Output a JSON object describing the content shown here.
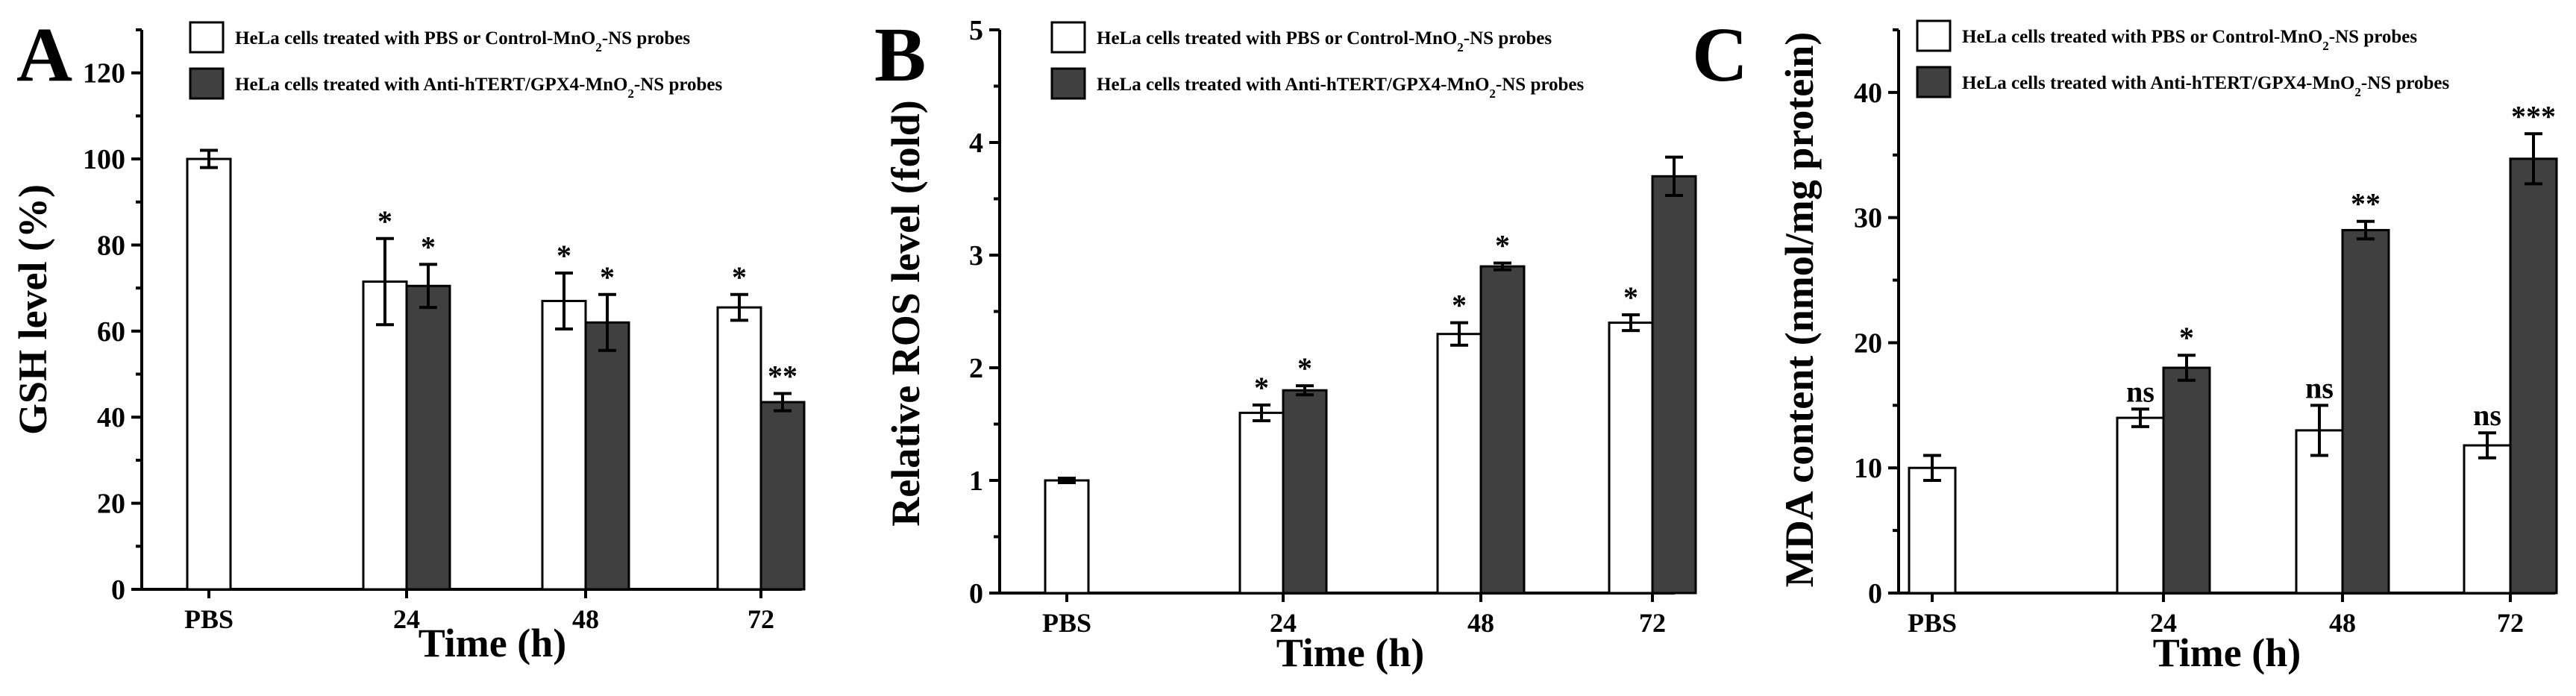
{
  "figure": {
    "panels": [
      {
        "letter": "A",
        "legend": [
          {
            "text": "HeLa cells treated with PBS or Control-MnO",
            "sub": "2",
            "tail": "-NS probes",
            "color": "#ffffff"
          },
          {
            "text": "HeLa cells treated with Anti-hTERT/GPX4-MnO",
            "sub": "2",
            "tail": "-NS probes",
            "color": "#404040"
          }
        ]
      },
      {
        "letter": "B",
        "legend": [
          {
            "text": "HeLa cells treated with PBS or Control-MnO",
            "sub": "2",
            "tail": "-NS probes",
            "color": "#ffffff"
          },
          {
            "text": "HeLa cells treated with Anti-hTERT/GPX4-MnO",
            "sub": "2",
            "tail": "-NS probes",
            "color": "#404040"
          }
        ]
      },
      {
        "letter": "C",
        "legend": [
          {
            "text": "HeLa cells treated with PBS or Control-MnO",
            "sub": "2",
            "tail": "-NS probes",
            "color": "#ffffff"
          },
          {
            "text": "HeLa cells treated with Anti-hTERT/GPX4-MnO",
            "sub": "2",
            "tail": "-NS probes",
            "color": "#404040"
          }
        ]
      }
    ]
  },
  "chart_data": [
    {
      "type": "bar",
      "panel": "A",
      "xlabel": "Time (h)",
      "ylabel": "GSH level (%)",
      "ylim": [
        0,
        130
      ],
      "yticks": [
        0,
        20,
        40,
        60,
        80,
        100,
        120
      ],
      "categories": [
        "PBS",
        "24",
        "48",
        "72"
      ],
      "series": [
        {
          "name": "HeLa cells treated with PBS or Control-MnO2-NS probes",
          "color": "#ffffff",
          "values": [
            100,
            71.5,
            67,
            65.5
          ],
          "errors": [
            2,
            10,
            6.5,
            3
          ],
          "labels": [
            "",
            "*",
            "*",
            "*"
          ]
        },
        {
          "name": "HeLa cells treated with Anti-hTERT/GPX4-MnO2-NS probes",
          "color": "#404040",
          "values": [
            null,
            70.5,
            62,
            43.5
          ],
          "errors": [
            null,
            5,
            6.5,
            2
          ],
          "labels": [
            "",
            "*",
            "*",
            "**"
          ]
        }
      ]
    },
    {
      "type": "bar",
      "panel": "B",
      "xlabel": "Time (h)",
      "ylabel": "Relative ROS level (fold)",
      "ylim": [
        0,
        5
      ],
      "yticks": [
        0,
        1,
        2,
        3,
        4,
        5
      ],
      "categories": [
        "PBS",
        "24",
        "48",
        "72"
      ],
      "series": [
        {
          "name": "HeLa cells treated with PBS or Control-MnO2-NS probes",
          "color": "#ffffff",
          "values": [
            1.0,
            1.6,
            2.3,
            2.4
          ],
          "errors": [
            0.02,
            0.07,
            0.1,
            0.07
          ],
          "labels": [
            "",
            "*",
            "*",
            "*"
          ]
        },
        {
          "name": "HeLa cells treated with Anti-hTERT/GPX4-MnO2-NS probes",
          "color": "#404040",
          "values": [
            null,
            1.8,
            2.9,
            3.7
          ],
          "errors": [
            null,
            0.04,
            0.03,
            0.17
          ],
          "labels": [
            "",
            "*",
            "*",
            ""
          ]
        }
      ]
    },
    {
      "type": "bar",
      "panel": "C",
      "xlabel": "Time (h)",
      "ylabel": "MDA content (nmol/mg protein)",
      "ylim": [
        0,
        45
      ],
      "yticks": [
        0,
        10,
        20,
        30,
        40
      ],
      "categories": [
        "PBS",
        "24",
        "48",
        "72"
      ],
      "series": [
        {
          "name": "HeLa cells treated with PBS or Control-MnO2-NS probes",
          "color": "#ffffff",
          "values": [
            10,
            14,
            13,
            11.8
          ],
          "errors": [
            1,
            0.7,
            2,
            1
          ],
          "labels": [
            "",
            "ns",
            "ns",
            "ns"
          ]
        },
        {
          "name": "HeLa cells treated with Anti-hTERT/GPX4-MnO2-NS probes",
          "color": "#404040",
          "values": [
            null,
            18,
            29,
            34.7
          ],
          "errors": [
            null,
            1,
            0.7,
            2
          ],
          "labels": [
            "",
            "*",
            "**",
            "***"
          ]
        }
      ]
    }
  ]
}
